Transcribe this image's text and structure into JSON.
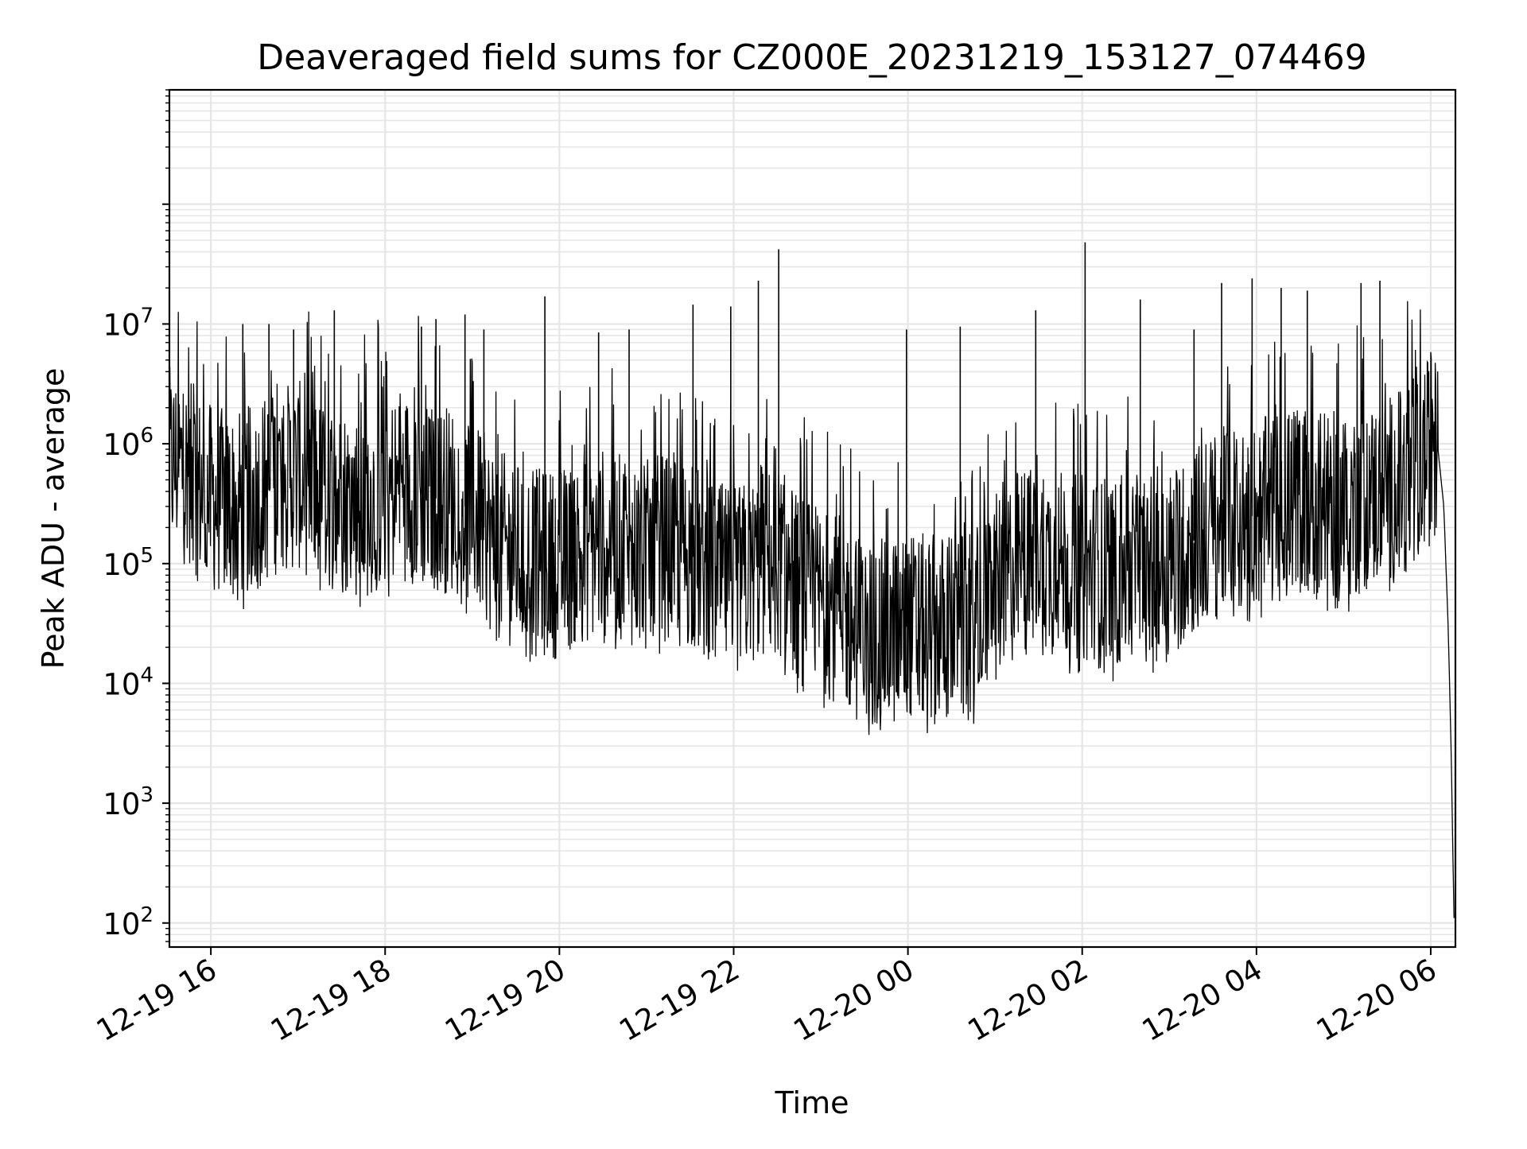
{
  "chart_data": {
    "type": "line",
    "title": "Deaveraged field sums for CZ000E_20231219_153127_074469",
    "xlabel": "Time",
    "ylabel": "Peak ADU - average",
    "yscale": "log",
    "ylim": [
      63,
      900000000
    ],
    "xlim": [
      "2023-12-19 15:31:27",
      "2023-12-20 06:17:00"
    ],
    "grid": true,
    "legend": "none",
    "line_color": "#000000",
    "grid_color": "#e6e6e6",
    "x_ticks": [
      {
        "value": "2023-12-19 16:00",
        "label": "12-19 16"
      },
      {
        "value": "2023-12-19 18:00",
        "label": "12-19 18"
      },
      {
        "value": "2023-12-19 20:00",
        "label": "12-19 20"
      },
      {
        "value": "2023-12-19 22:00",
        "label": "12-19 22"
      },
      {
        "value": "2023-12-20 00:00",
        "label": "12-20 00"
      },
      {
        "value": "2023-12-20 02:00",
        "label": "12-20 02"
      },
      {
        "value": "2023-12-20 04:00",
        "label": "12-20 04"
      },
      {
        "value": "2023-12-20 06:00",
        "label": "12-20 06"
      }
    ],
    "y_ticks": [
      {
        "value": 100,
        "base": "10",
        "exp": "2"
      },
      {
        "value": 1000,
        "base": "10",
        "exp": "3"
      },
      {
        "value": 10000,
        "base": "10",
        "exp": "4"
      },
      {
        "value": 100000,
        "base": "10",
        "exp": "5"
      },
      {
        "value": 1000000,
        "base": "10",
        "exp": "6"
      },
      {
        "value": 10000000,
        "base": "10",
        "exp": "7"
      }
    ],
    "series": [
      {
        "x": [
          "2023-12-19 15:31:27",
          "2023-12-19 15:40",
          "2023-12-19 15:50",
          "2023-12-19 16:00",
          "2023-12-19 16:15",
          "2023-12-19 16:30",
          "2023-12-19 16:45",
          "2023-12-19 17:00",
          "2023-12-19 17:15",
          "2023-12-19 17:30",
          "2023-12-19 17:45",
          "2023-12-19 18:00",
          "2023-12-19 18:15",
          "2023-12-19 18:30",
          "2023-12-19 18:45",
          "2023-12-19 19:00",
          "2023-12-19 19:15",
          "2023-12-19 19:30",
          "2023-12-19 19:45",
          "2023-12-19 20:00",
          "2023-12-19 20:15",
          "2023-12-19 20:30",
          "2023-12-19 20:45",
          "2023-12-19 21:00",
          "2023-12-19 21:15",
          "2023-12-19 21:30",
          "2023-12-19 21:45",
          "2023-12-19 22:00",
          "2023-12-19 22:15",
          "2023-12-19 22:30",
          "2023-12-19 22:45",
          "2023-12-19 23:00",
          "2023-12-19 23:15",
          "2023-12-19 23:30",
          "2023-12-19 23:45",
          "2023-12-20 00:00",
          "2023-12-20 00:15",
          "2023-12-20 00:30",
          "2023-12-20 00:45",
          "2023-12-20 01:00",
          "2023-12-20 01:15",
          "2023-12-20 01:30",
          "2023-12-20 01:45",
          "2023-12-20 02:00",
          "2023-12-20 02:15",
          "2023-12-20 02:30",
          "2023-12-20 02:45",
          "2023-12-20 03:00",
          "2023-12-20 03:15",
          "2023-12-20 03:30",
          "2023-12-20 03:45",
          "2023-12-20 04:00",
          "2023-12-20 04:15",
          "2023-12-20 04:30",
          "2023-12-20 04:45",
          "2023-12-20 05:00",
          "2023-12-20 05:15",
          "2023-12-20 05:30",
          "2023-12-20 05:45",
          "2023-12-20 06:00",
          "2023-12-20 06:05",
          "2023-12-20 06:09",
          "2023-12-20 06:12",
          "2023-12-20 06:14",
          "2023-12-20 06:16"
        ],
        "y": [
          700000,
          650000,
          450000,
          350000,
          300000,
          350000,
          500000,
          550000,
          400000,
          350000,
          300000,
          400000,
          450000,
          350000,
          350000,
          280000,
          150000,
          120000,
          100000,
          100000,
          130000,
          150000,
          130000,
          120000,
          140000,
          120000,
          80000,
          70000,
          90000,
          110000,
          60000,
          50000,
          40000,
          25000,
          25000,
          30000,
          28000,
          30000,
          28000,
          60000,
          100000,
          110000,
          100000,
          90000,
          80000,
          85000,
          90000,
          100000,
          150000,
          200000,
          250000,
          250000,
          300000,
          350000,
          300000,
          300000,
          350000,
          400000,
          500000,
          900000,
          900000,
          300000,
          30000,
          3000,
          110
        ],
        "peaks": [
          {
            "x": "2023-12-19 16:22",
            "y": 10000000
          },
          {
            "x": "2023-12-19 16:40",
            "y": 10000000
          },
          {
            "x": "2023-12-19 16:57",
            "y": 9000000
          },
          {
            "x": "2023-12-19 17:25",
            "y": 13000000
          },
          {
            "x": "2023-12-19 18:25",
            "y": 9500000
          },
          {
            "x": "2023-12-19 18:35",
            "y": 11000000
          },
          {
            "x": "2023-12-19 18:55",
            "y": 12000000
          },
          {
            "x": "2023-12-19 19:08",
            "y": 9000000
          },
          {
            "x": "2023-12-19 19:50",
            "y": 17000000
          },
          {
            "x": "2023-12-19 20:27",
            "y": 8500000
          },
          {
            "x": "2023-12-19 20:48",
            "y": 9000000
          },
          {
            "x": "2023-12-19 21:32",
            "y": 14500000
          },
          {
            "x": "2023-12-19 21:58",
            "y": 14000000
          },
          {
            "x": "2023-12-19 22:17",
            "y": 23000000
          },
          {
            "x": "2023-12-19 22:31",
            "y": 42000000
          },
          {
            "x": "2023-12-19 23:59",
            "y": 9000000
          },
          {
            "x": "2023-12-20 00:36",
            "y": 9500000
          },
          {
            "x": "2023-12-20 01:28",
            "y": 13000000
          },
          {
            "x": "2023-12-20 02:02",
            "y": 48000000
          },
          {
            "x": "2023-12-20 02:40",
            "y": 16000000
          },
          {
            "x": "2023-12-20 03:17",
            "y": 9000000
          },
          {
            "x": "2023-12-20 03:36",
            "y": 22000000
          },
          {
            "x": "2023-12-20 03:57",
            "y": 24000000
          },
          {
            "x": "2023-12-20 04:17",
            "y": 20000000
          },
          {
            "x": "2023-12-20 04:35",
            "y": 19000000
          },
          {
            "x": "2023-12-20 05:12",
            "y": 22000000
          },
          {
            "x": "2023-12-20 05:25",
            "y": 23000000
          }
        ]
      }
    ]
  }
}
